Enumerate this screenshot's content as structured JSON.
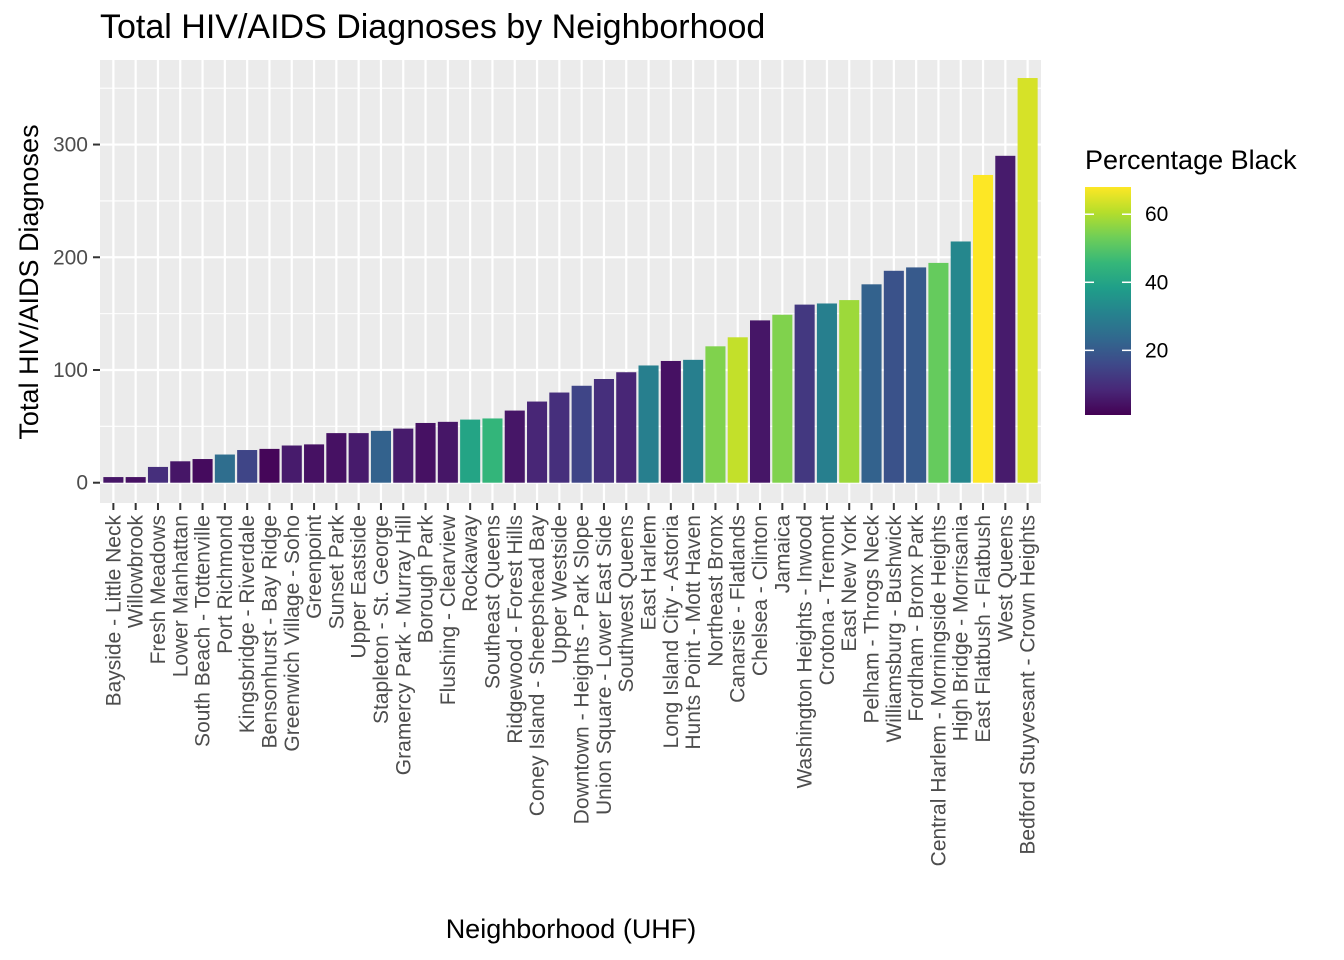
{
  "chart_data": {
    "type": "bar",
    "title": "Total HIV/AIDS Diagnoses by Neighborhood",
    "xlabel": "Neighborhood (UHF)",
    "ylabel": "Total HIV/AIDS Diagnoses",
    "ylim": [
      -18,
      375
    ],
    "yticks": [
      0,
      100,
      200,
      300
    ],
    "grid": true,
    "legend": {
      "title": "Percentage Black",
      "position": "right",
      "min": 1,
      "max": 68,
      "ticks": [
        20,
        40,
        60
      ]
    },
    "categories": [
      "Bayside - Little Neck",
      "Willowbrook",
      "Fresh Meadows",
      "Lower Manhattan",
      "South Beach - Tottenville",
      "Port Richmond",
      "Kingsbridge - Riverdale",
      "Bensonhurst - Bay Ridge",
      "Greenwich Village - Soho",
      "Greenpoint",
      "Sunset Park",
      "Upper Eastside",
      "Stapleton - St. George",
      "Gramercy Park - Murray Hill",
      "Borough Park",
      "Flushing - Clearview",
      "Rockaway",
      "Southeast Queens",
      "Ridgewood - Forest Hills",
      "Coney Island - Sheepshead Bay",
      "Upper Westside",
      "Downtown - Heights - Park Slope",
      "Union Square - Lower East Side",
      "Southwest Queens",
      "East Harlem",
      "Long Island City - Astoria",
      "Hunts Point - Mott Haven",
      "Northeast Bronx",
      "Canarsie - Flatlands",
      "Chelsea - Clinton",
      "Jamaica",
      "Washington Heights - Inwood",
      "Crotona - Tremont",
      "East New York",
      "Pelham - Throgs Neck",
      "Williamsburg - Bushwick",
      "Fordham - Bronx Park",
      "Central Harlem - Morningside Heights",
      "High Bridge - Morrisania",
      "East Flatbush - Flatbush",
      "West Queens",
      "Bedford Stuyvesant - Crown Heights"
    ],
    "values": [
      5,
      5,
      14,
      19,
      21,
      25,
      29,
      30,
      33,
      34,
      44,
      44,
      46,
      48,
      53,
      54,
      56,
      57,
      64,
      72,
      80,
      86,
      92,
      98,
      104,
      108,
      109,
      121,
      129,
      144,
      149,
      158,
      159,
      162,
      176,
      188,
      191,
      195,
      214,
      273,
      290,
      359
    ],
    "percent_black": [
      5,
      4,
      10,
      5,
      3,
      25,
      15,
      2,
      6,
      4,
      4,
      6,
      22,
      6,
      4,
      5,
      40,
      45,
      5,
      8,
      10,
      15,
      10,
      8,
      30,
      4,
      30,
      55,
      62,
      5,
      55,
      12,
      30,
      58,
      22,
      18,
      20,
      52,
      32,
      68,
      6,
      64
    ]
  },
  "colors": {
    "panel_background": "#ebebeb",
    "grid_major": "#ffffff",
    "axis_tick": "#333333",
    "tick_text": "#4d4d4d",
    "viridis": [
      "#440154",
      "#482878",
      "#3e4989",
      "#31688e",
      "#26828e",
      "#1f9e89",
      "#35b779",
      "#6ece58",
      "#b5de2b",
      "#fde725"
    ]
  }
}
